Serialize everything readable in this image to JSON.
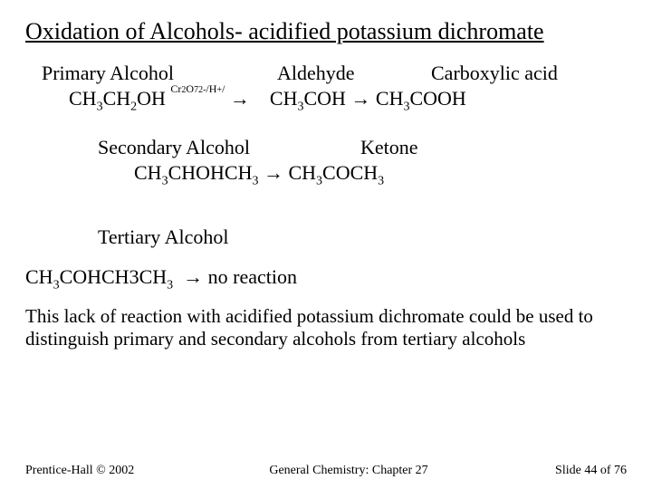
{
  "title": "Oxidation of Alcohols- acidified potassium dichromate",
  "labels": {
    "primary": "Primary Alcohol",
    "aldehyde": "Aldehyde",
    "carboxylic": "Carboxylic acid",
    "secondary": "Secondary Alcohol",
    "ketone": "Ketone",
    "tertiary": "Tertiary Alcohol"
  },
  "reactions": {
    "reagent_raw": "Cr2O72-/H+/",
    "primary_lhs": "CH3CH2OH",
    "primary_rhs1": "CH3COH",
    "primary_rhs2": "CH3COOH",
    "secondary_lhs": "CH3CHOHCH3",
    "secondary_rhs": "CH3COCH3",
    "tertiary_lhs": "CH3COHCH3CH3",
    "tertiary_rhs": "no reaction"
  },
  "explanation": "This lack of reaction with acidified potassium dichromate could be used to distinguish primary and secondary alcohols from tertiary alcohols",
  "footer": {
    "left": "Prentice-Hall © 2002",
    "center": "General Chemistry: Chapter 27",
    "right": "Slide 44 of 76"
  },
  "style": {
    "background": "#ffffff",
    "text_color": "#000000",
    "title_fontsize": 26,
    "body_fontsize": 22,
    "footer_fontsize": 14,
    "font_family": "Times New Roman"
  }
}
